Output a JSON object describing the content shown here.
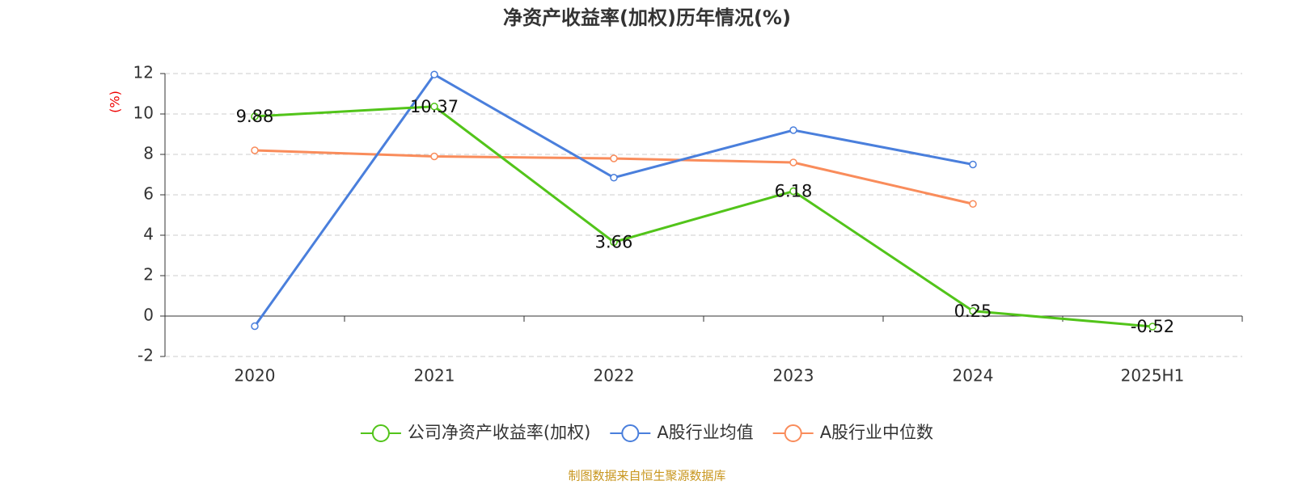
{
  "chart_data": {
    "type": "line",
    "title": "净资产收益率(加权)历年情况(%)",
    "y_label": "(%)",
    "source": "制图数据来自恒生聚源数据库",
    "categories": [
      "2020",
      "2021",
      "2022",
      "2023",
      "2024",
      "2025H1"
    ],
    "series": [
      {
        "name": "公司净资产收益率(加权)",
        "color": "#52c41a",
        "values": [
          9.88,
          10.37,
          3.66,
          6.18,
          0.25,
          -0.52
        ],
        "data_labels": true
      },
      {
        "name": "A股行业均值",
        "color": "#4a7fdc",
        "values": [
          -0.5,
          11.95,
          6.85,
          9.2,
          7.5,
          null
        ]
      },
      {
        "name": "A股行业中位数",
        "color": "#f98c5b",
        "values": [
          8.2,
          7.9,
          7.8,
          7.6,
          5.55,
          null
        ]
      }
    ],
    "ylim": [
      -2,
      12
    ],
    "yticks": [
      -2,
      0,
      2,
      4,
      6,
      8,
      10,
      12
    ],
    "grid": true,
    "legend": "bottom"
  }
}
